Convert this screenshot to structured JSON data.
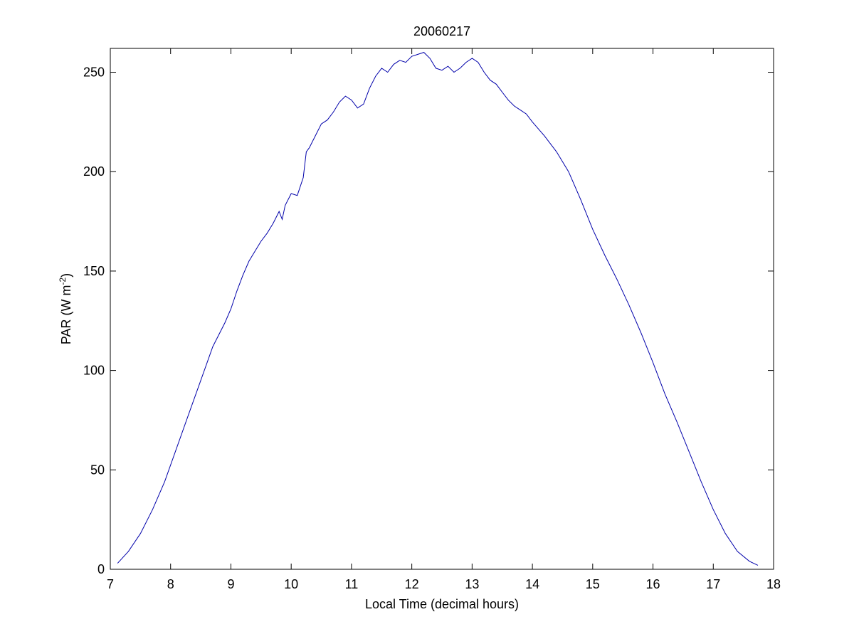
{
  "chart_data": {
    "type": "line",
    "title": "20060217",
    "xlabel": "Local Time (decimal hours)",
    "ylabel": {
      "main": "PAR (W m",
      "sup": "-2",
      "close": ")"
    },
    "xlim": [
      7,
      18
    ],
    "ylim": [
      0,
      262
    ],
    "xticks": [
      7,
      8,
      9,
      10,
      11,
      12,
      13,
      14,
      15,
      16,
      17,
      18
    ],
    "yticks": [
      0,
      50,
      100,
      150,
      200,
      250
    ],
    "grid": false,
    "legend": "none",
    "series": [
      {
        "color": "#0000aa",
        "x": [
          7.12,
          7.3,
          7.5,
          7.7,
          7.9,
          8.1,
          8.3,
          8.5,
          8.7,
          8.9,
          9.0,
          9.1,
          9.2,
          9.3,
          9.4,
          9.5,
          9.6,
          9.7,
          9.8,
          9.85,
          9.9,
          10.0,
          10.1,
          10.2,
          10.25,
          10.3,
          10.4,
          10.5,
          10.6,
          10.7,
          10.8,
          10.9,
          11.0,
          11.1,
          11.2,
          11.3,
          11.4,
          11.5,
          11.6,
          11.7,
          11.8,
          11.9,
          12.0,
          12.1,
          12.2,
          12.3,
          12.4,
          12.5,
          12.6,
          12.7,
          12.8,
          12.9,
          13.0,
          13.1,
          13.2,
          13.3,
          13.4,
          13.5,
          13.6,
          13.7,
          13.8,
          13.9,
          14.0,
          14.2,
          14.4,
          14.6,
          14.8,
          15.0,
          15.2,
          15.4,
          15.6,
          15.8,
          16.0,
          16.2,
          16.4,
          16.6,
          16.8,
          17.0,
          17.2,
          17.4,
          17.6,
          17.74
        ],
        "y": [
          3,
          9,
          18,
          30,
          44,
          61,
          78,
          95,
          112,
          124,
          131,
          140,
          148,
          155,
          160,
          165,
          169,
          174,
          180,
          176,
          183,
          189,
          188,
          197,
          210,
          212,
          218,
          224,
          226,
          230,
          235,
          238,
          236,
          232,
          234,
          242,
          248,
          252,
          250,
          254,
          256,
          255,
          258,
          259,
          260,
          257,
          252,
          251,
          253,
          250,
          252,
          255,
          257,
          255,
          250,
          246,
          244,
          240,
          236,
          233,
          231,
          229,
          225,
          218,
          210,
          200,
          186,
          171,
          158,
          146,
          133,
          119,
          104,
          88,
          74,
          59,
          44,
          30,
          18,
          9,
          4,
          2
        ]
      }
    ]
  }
}
